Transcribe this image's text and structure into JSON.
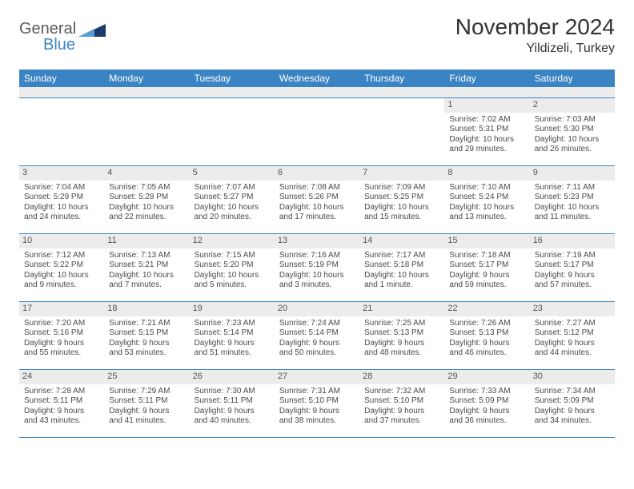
{
  "brand": {
    "line1": "General",
    "line2": "Blue"
  },
  "colors": {
    "header_blue": "#3b84c4",
    "band_gray": "#ececec",
    "text": "#333333",
    "cell_text": "#4a4a4a",
    "logo_dark": "#1a3a6e",
    "logo_light": "#5a9bd4"
  },
  "title": "November 2024",
  "location": "Yildizeli, Turkey",
  "dow": [
    "Sunday",
    "Monday",
    "Tuesday",
    "Wednesday",
    "Thursday",
    "Friday",
    "Saturday"
  ],
  "weeks": [
    [
      {
        "n": "",
        "t": ""
      },
      {
        "n": "",
        "t": ""
      },
      {
        "n": "",
        "t": ""
      },
      {
        "n": "",
        "t": ""
      },
      {
        "n": "",
        "t": ""
      },
      {
        "n": "1",
        "t": "Sunrise: 7:02 AM\nSunset: 5:31 PM\nDaylight: 10 hours and 29 minutes."
      },
      {
        "n": "2",
        "t": "Sunrise: 7:03 AM\nSunset: 5:30 PM\nDaylight: 10 hours and 26 minutes."
      }
    ],
    [
      {
        "n": "3",
        "t": "Sunrise: 7:04 AM\nSunset: 5:29 PM\nDaylight: 10 hours and 24 minutes."
      },
      {
        "n": "4",
        "t": "Sunrise: 7:05 AM\nSunset: 5:28 PM\nDaylight: 10 hours and 22 minutes."
      },
      {
        "n": "5",
        "t": "Sunrise: 7:07 AM\nSunset: 5:27 PM\nDaylight: 10 hours and 20 minutes."
      },
      {
        "n": "6",
        "t": "Sunrise: 7:08 AM\nSunset: 5:26 PM\nDaylight: 10 hours and 17 minutes."
      },
      {
        "n": "7",
        "t": "Sunrise: 7:09 AM\nSunset: 5:25 PM\nDaylight: 10 hours and 15 minutes."
      },
      {
        "n": "8",
        "t": "Sunrise: 7:10 AM\nSunset: 5:24 PM\nDaylight: 10 hours and 13 minutes."
      },
      {
        "n": "9",
        "t": "Sunrise: 7:11 AM\nSunset: 5:23 PM\nDaylight: 10 hours and 11 minutes."
      }
    ],
    [
      {
        "n": "10",
        "t": "Sunrise: 7:12 AM\nSunset: 5:22 PM\nDaylight: 10 hours and 9 minutes."
      },
      {
        "n": "11",
        "t": "Sunrise: 7:13 AM\nSunset: 5:21 PM\nDaylight: 10 hours and 7 minutes."
      },
      {
        "n": "12",
        "t": "Sunrise: 7:15 AM\nSunset: 5:20 PM\nDaylight: 10 hours and 5 minutes."
      },
      {
        "n": "13",
        "t": "Sunrise: 7:16 AM\nSunset: 5:19 PM\nDaylight: 10 hours and 3 minutes."
      },
      {
        "n": "14",
        "t": "Sunrise: 7:17 AM\nSunset: 5:18 PM\nDaylight: 10 hours and 1 minute."
      },
      {
        "n": "15",
        "t": "Sunrise: 7:18 AM\nSunset: 5:17 PM\nDaylight: 9 hours and 59 minutes."
      },
      {
        "n": "16",
        "t": "Sunrise: 7:19 AM\nSunset: 5:17 PM\nDaylight: 9 hours and 57 minutes."
      }
    ],
    [
      {
        "n": "17",
        "t": "Sunrise: 7:20 AM\nSunset: 5:16 PM\nDaylight: 9 hours and 55 minutes."
      },
      {
        "n": "18",
        "t": "Sunrise: 7:21 AM\nSunset: 5:15 PM\nDaylight: 9 hours and 53 minutes."
      },
      {
        "n": "19",
        "t": "Sunrise: 7:23 AM\nSunset: 5:14 PM\nDaylight: 9 hours and 51 minutes."
      },
      {
        "n": "20",
        "t": "Sunrise: 7:24 AM\nSunset: 5:14 PM\nDaylight: 9 hours and 50 minutes."
      },
      {
        "n": "21",
        "t": "Sunrise: 7:25 AM\nSunset: 5:13 PM\nDaylight: 9 hours and 48 minutes."
      },
      {
        "n": "22",
        "t": "Sunrise: 7:26 AM\nSunset: 5:13 PM\nDaylight: 9 hours and 46 minutes."
      },
      {
        "n": "23",
        "t": "Sunrise: 7:27 AM\nSunset: 5:12 PM\nDaylight: 9 hours and 44 minutes."
      }
    ],
    [
      {
        "n": "24",
        "t": "Sunrise: 7:28 AM\nSunset: 5:11 PM\nDaylight: 9 hours and 43 minutes."
      },
      {
        "n": "25",
        "t": "Sunrise: 7:29 AM\nSunset: 5:11 PM\nDaylight: 9 hours and 41 minutes."
      },
      {
        "n": "26",
        "t": "Sunrise: 7:30 AM\nSunset: 5:11 PM\nDaylight: 9 hours and 40 minutes."
      },
      {
        "n": "27",
        "t": "Sunrise: 7:31 AM\nSunset: 5:10 PM\nDaylight: 9 hours and 38 minutes."
      },
      {
        "n": "28",
        "t": "Sunrise: 7:32 AM\nSunset: 5:10 PM\nDaylight: 9 hours and 37 minutes."
      },
      {
        "n": "29",
        "t": "Sunrise: 7:33 AM\nSunset: 5:09 PM\nDaylight: 9 hours and 36 minutes."
      },
      {
        "n": "30",
        "t": "Sunrise: 7:34 AM\nSunset: 5:09 PM\nDaylight: 9 hours and 34 minutes."
      }
    ]
  ]
}
